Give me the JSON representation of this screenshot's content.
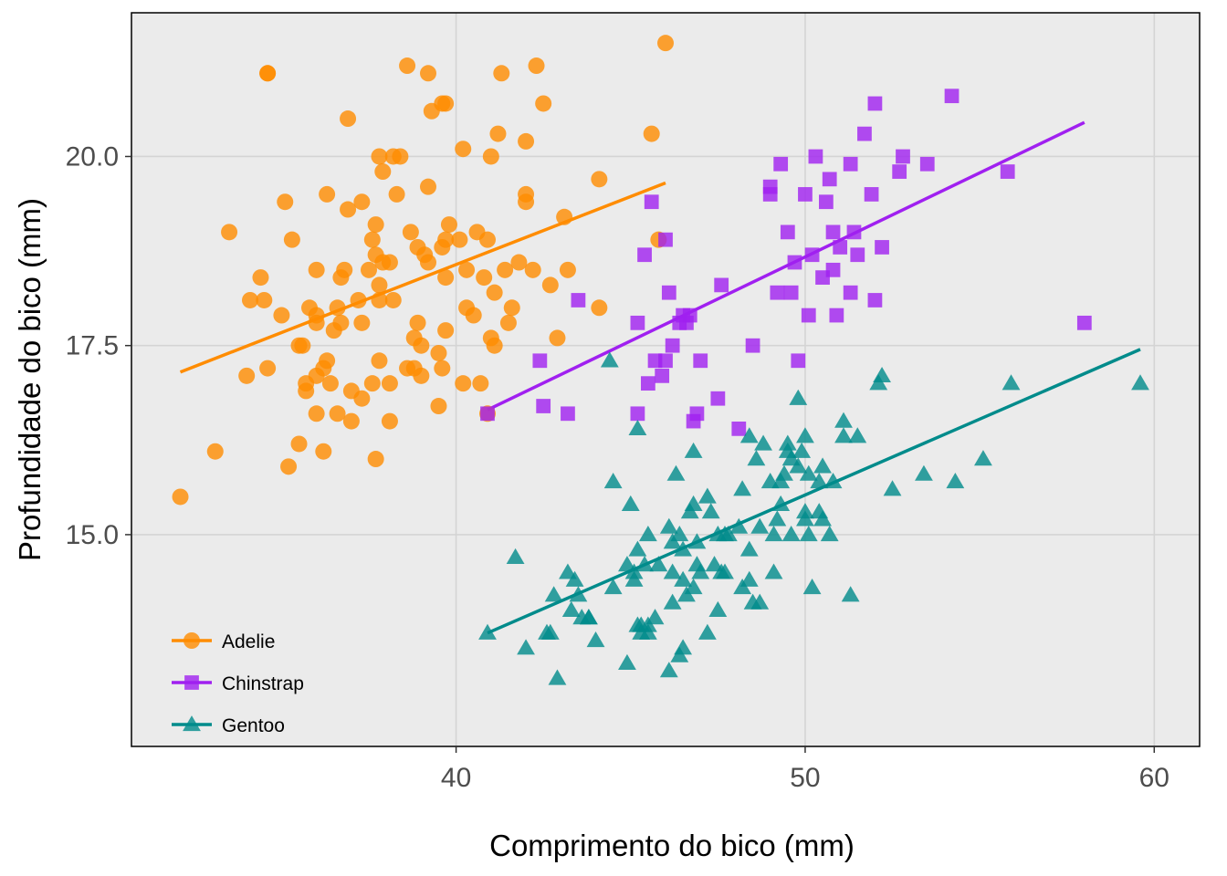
{
  "chart_data": {
    "type": "scatter",
    "xlabel": "Comprimento do bico (mm)",
    "ylabel": "Profundidade do bico (mm)",
    "xlim": [
      30.7,
      61.3
    ],
    "ylim": [
      12.2,
      21.9
    ],
    "xticks": [
      40,
      50,
      60
    ],
    "xtick_labels": [
      "40",
      "50",
      "60"
    ],
    "yticks": [
      15.0,
      17.5,
      20.0
    ],
    "ytick_labels": [
      "15.0",
      "17.5",
      "20.0"
    ],
    "grid": true,
    "legend_position": "bottom-left",
    "series": [
      {
        "name": "Adelie",
        "color": "#ff8c00",
        "marker": "circle",
        "trend": [
          [
            32.1,
            17.15
          ],
          [
            46.0,
            19.65
          ]
        ],
        "points": [
          [
            32.1,
            15.5
          ],
          [
            33.1,
            16.1
          ],
          [
            33.5,
            19.0
          ],
          [
            34.0,
            17.1
          ],
          [
            34.1,
            18.1
          ],
          [
            34.4,
            18.4
          ],
          [
            34.5,
            18.1
          ],
          [
            34.6,
            17.2
          ],
          [
            34.6,
            21.1
          ],
          [
            35.0,
            17.9
          ],
          [
            35.1,
            19.4
          ],
          [
            35.2,
            15.9
          ],
          [
            35.3,
            18.9
          ],
          [
            35.5,
            16.2
          ],
          [
            35.5,
            17.5
          ],
          [
            35.6,
            17.5
          ],
          [
            35.7,
            17.0
          ],
          [
            35.7,
            16.9
          ],
          [
            35.8,
            18.0
          ],
          [
            36.0,
            16.6
          ],
          [
            36.0,
            17.1
          ],
          [
            36.0,
            17.8
          ],
          [
            36.0,
            17.9
          ],
          [
            36.0,
            18.5
          ],
          [
            36.2,
            17.2
          ],
          [
            36.2,
            16.1
          ],
          [
            36.3,
            17.3
          ],
          [
            36.3,
            19.5
          ],
          [
            36.4,
            17.0
          ],
          [
            36.5,
            17.7
          ],
          [
            36.6,
            16.6
          ],
          [
            36.6,
            18.0
          ],
          [
            36.7,
            17.8
          ],
          [
            36.7,
            18.4
          ],
          [
            36.8,
            18.5
          ],
          [
            36.9,
            19.3
          ],
          [
            37.0,
            16.9
          ],
          [
            37.0,
            16.5
          ],
          [
            37.2,
            18.1
          ],
          [
            37.3,
            16.8
          ],
          [
            37.3,
            17.8
          ],
          [
            37.3,
            19.4
          ],
          [
            37.5,
            18.5
          ],
          [
            37.6,
            17.0
          ],
          [
            37.6,
            18.9
          ],
          [
            37.7,
            18.7
          ],
          [
            37.7,
            16.0
          ],
          [
            37.7,
            19.1
          ],
          [
            37.8,
            18.3
          ],
          [
            37.8,
            17.3
          ],
          [
            37.8,
            18.1
          ],
          [
            37.8,
            20.0
          ],
          [
            37.9,
            18.6
          ],
          [
            38.1,
            18.6
          ],
          [
            38.1,
            17.0
          ],
          [
            38.1,
            16.5
          ],
          [
            38.2,
            18.1
          ],
          [
            38.2,
            20.0
          ],
          [
            38.6,
            21.2
          ],
          [
            38.6,
            17.2
          ],
          [
            38.7,
            19.0
          ],
          [
            38.8,
            17.2
          ],
          [
            38.8,
            17.6
          ],
          [
            38.9,
            18.8
          ],
          [
            38.9,
            17.8
          ],
          [
            39.0,
            17.1
          ],
          [
            39.0,
            17.5
          ],
          [
            39.1,
            18.7
          ],
          [
            39.2,
            19.6
          ],
          [
            39.2,
            18.6
          ],
          [
            39.3,
            20.6
          ],
          [
            39.5,
            17.4
          ],
          [
            39.5,
            16.7
          ],
          [
            39.6,
            18.8
          ],
          [
            39.6,
            17.2
          ],
          [
            39.7,
            18.4
          ],
          [
            39.7,
            17.7
          ],
          [
            39.7,
            18.9
          ],
          [
            39.8,
            19.1
          ],
          [
            40.1,
            18.9
          ],
          [
            40.2,
            17.0
          ],
          [
            40.3,
            18.0
          ],
          [
            40.3,
            18.5
          ],
          [
            40.5,
            17.9
          ],
          [
            40.6,
            19.0
          ],
          [
            40.7,
            17.0
          ],
          [
            40.8,
            18.4
          ],
          [
            40.9,
            16.6
          ],
          [
            40.9,
            18.9
          ],
          [
            41.0,
            17.6
          ],
          [
            41.1,
            17.5
          ],
          [
            41.1,
            18.2
          ],
          [
            41.3,
            21.1
          ],
          [
            41.4,
            18.5
          ],
          [
            41.5,
            17.8
          ],
          [
            41.6,
            18.0
          ],
          [
            42.0,
            19.5
          ],
          [
            42.2,
            18.5
          ],
          [
            42.3,
            21.2
          ],
          [
            42.5,
            20.7
          ],
          [
            42.7,
            18.3
          ],
          [
            42.9,
            17.6
          ],
          [
            43.1,
            19.2
          ],
          [
            43.2,
            18.5
          ],
          [
            44.1,
            18.0
          ],
          [
            44.1,
            19.7
          ],
          [
            45.6,
            20.3
          ],
          [
            45.8,
            18.9
          ],
          [
            46.0,
            21.5
          ],
          [
            34.6,
            21.1
          ],
          [
            38.3,
            19.5
          ],
          [
            36.9,
            20.5
          ],
          [
            38.4,
            20.0
          ],
          [
            39.2,
            21.1
          ],
          [
            39.7,
            20.7
          ],
          [
            40.2,
            20.1
          ],
          [
            41.0,
            20.0
          ],
          [
            41.2,
            20.3
          ],
          [
            42.0,
            20.2
          ],
          [
            42.0,
            19.4
          ],
          [
            41.8,
            18.6
          ],
          [
            37.9,
            19.8
          ],
          [
            39.6,
            20.7
          ]
        ]
      },
      {
        "name": "Chinstrap",
        "color": "#a020f0",
        "marker": "square",
        "trend": [
          [
            40.9,
            16.65
          ],
          [
            58.0,
            20.45
          ]
        ],
        "points": [
          [
            40.9,
            16.6
          ],
          [
            42.4,
            17.3
          ],
          [
            42.5,
            16.7
          ],
          [
            43.2,
            16.6
          ],
          [
            43.5,
            18.1
          ],
          [
            45.2,
            17.8
          ],
          [
            45.2,
            16.6
          ],
          [
            45.4,
            18.7
          ],
          [
            45.5,
            17.0
          ],
          [
            45.6,
            19.4
          ],
          [
            45.7,
            17.3
          ],
          [
            45.9,
            17.1
          ],
          [
            46.0,
            18.9
          ],
          [
            46.1,
            18.2
          ],
          [
            46.2,
            17.5
          ],
          [
            46.4,
            17.8
          ],
          [
            46.5,
            17.9
          ],
          [
            46.6,
            17.8
          ],
          [
            46.7,
            17.9
          ],
          [
            46.8,
            16.5
          ],
          [
            46.9,
            16.6
          ],
          [
            47.0,
            17.3
          ],
          [
            47.5,
            16.8
          ],
          [
            47.6,
            18.3
          ],
          [
            48.1,
            16.4
          ],
          [
            48.5,
            17.5
          ],
          [
            49.0,
            19.6
          ],
          [
            49.2,
            18.2
          ],
          [
            49.3,
            19.9
          ],
          [
            49.5,
            19.0
          ],
          [
            49.6,
            18.2
          ],
          [
            49.7,
            18.6
          ],
          [
            49.8,
            17.3
          ],
          [
            50.0,
            19.5
          ],
          [
            50.1,
            17.9
          ],
          [
            50.2,
            18.7
          ],
          [
            50.3,
            20.0
          ],
          [
            50.5,
            18.4
          ],
          [
            50.6,
            19.4
          ],
          [
            50.7,
            19.7
          ],
          [
            50.8,
            18.5
          ],
          [
            50.9,
            17.9
          ],
          [
            51.0,
            18.8
          ],
          [
            51.3,
            18.2
          ],
          [
            51.4,
            19.0
          ],
          [
            51.5,
            18.7
          ],
          [
            51.7,
            20.3
          ],
          [
            51.9,
            19.5
          ],
          [
            52.0,
            18.1
          ],
          [
            52.2,
            18.8
          ],
          [
            52.7,
            19.8
          ],
          [
            52.8,
            20.0
          ],
          [
            53.5,
            19.9
          ],
          [
            54.2,
            20.8
          ],
          [
            55.8,
            19.8
          ],
          [
            58.0,
            17.8
          ],
          [
            49.0,
            19.5
          ],
          [
            50.8,
            19.0
          ],
          [
            51.3,
            19.9
          ],
          [
            52.0,
            20.7
          ],
          [
            46.0,
            17.3
          ]
        ]
      },
      {
        "name": "Gentoo",
        "color": "#008b8b",
        "marker": "triangle",
        "trend": [
          [
            40.9,
            13.7
          ],
          [
            59.6,
            17.45
          ]
        ],
        "points": [
          [
            40.9,
            13.7
          ],
          [
            41.7,
            14.7
          ],
          [
            42.0,
            13.5
          ],
          [
            42.6,
            13.7
          ],
          [
            42.7,
            13.7
          ],
          [
            42.8,
            14.2
          ],
          [
            42.9,
            13.1
          ],
          [
            43.2,
            14.5
          ],
          [
            43.3,
            14.0
          ],
          [
            43.4,
            14.4
          ],
          [
            43.5,
            14.2
          ],
          [
            43.6,
            13.9
          ],
          [
            43.8,
            13.9
          ],
          [
            44.0,
            13.6
          ],
          [
            44.4,
            17.3
          ],
          [
            44.5,
            14.3
          ],
          [
            44.5,
            15.7
          ],
          [
            44.9,
            13.3
          ],
          [
            45.0,
            15.4
          ],
          [
            45.1,
            14.5
          ],
          [
            45.2,
            13.8
          ],
          [
            45.2,
            14.8
          ],
          [
            45.2,
            16.4
          ],
          [
            45.3,
            13.8
          ],
          [
            45.3,
            13.7
          ],
          [
            45.4,
            14.6
          ],
          [
            45.5,
            13.7
          ],
          [
            45.5,
            15.0
          ],
          [
            45.7,
            13.9
          ],
          [
            45.8,
            14.6
          ],
          [
            46.1,
            13.2
          ],
          [
            46.1,
            15.1
          ],
          [
            46.2,
            14.1
          ],
          [
            46.2,
            14.5
          ],
          [
            46.3,
            15.8
          ],
          [
            46.4,
            15.0
          ],
          [
            46.5,
            13.5
          ],
          [
            46.5,
            14.4
          ],
          [
            46.5,
            14.8
          ],
          [
            46.6,
            14.2
          ],
          [
            46.7,
            15.3
          ],
          [
            46.8,
            14.3
          ],
          [
            46.8,
            15.4
          ],
          [
            46.8,
            16.1
          ],
          [
            46.9,
            14.6
          ],
          [
            47.2,
            13.7
          ],
          [
            47.2,
            15.5
          ],
          [
            47.3,
            15.3
          ],
          [
            47.4,
            14.6
          ],
          [
            47.5,
            14.0
          ],
          [
            47.5,
            15.0
          ],
          [
            47.6,
            14.5
          ],
          [
            47.7,
            15.0
          ],
          [
            47.8,
            15.0
          ],
          [
            48.1,
            15.1
          ],
          [
            48.2,
            14.3
          ],
          [
            48.2,
            15.6
          ],
          [
            48.4,
            14.4
          ],
          [
            48.4,
            16.3
          ],
          [
            48.5,
            14.1
          ],
          [
            48.6,
            16.0
          ],
          [
            48.7,
            14.1
          ],
          [
            48.7,
            15.1
          ],
          [
            48.8,
            16.2
          ],
          [
            49.0,
            15.7
          ],
          [
            49.1,
            14.5
          ],
          [
            49.1,
            15.0
          ],
          [
            49.2,
            15.2
          ],
          [
            49.3,
            15.7
          ],
          [
            49.4,
            15.8
          ],
          [
            49.5,
            16.1
          ],
          [
            49.5,
            16.2
          ],
          [
            49.6,
            15.0
          ],
          [
            49.6,
            16.0
          ],
          [
            49.8,
            15.9
          ],
          [
            49.8,
            16.8
          ],
          [
            49.9,
            16.1
          ],
          [
            50.0,
            15.2
          ],
          [
            50.0,
            15.3
          ],
          [
            50.0,
            16.3
          ],
          [
            50.1,
            15.0
          ],
          [
            50.2,
            14.3
          ],
          [
            50.4,
            15.3
          ],
          [
            50.4,
            15.7
          ],
          [
            50.5,
            15.2
          ],
          [
            50.5,
            15.9
          ],
          [
            50.7,
            15.0
          ],
          [
            50.8,
            15.7
          ],
          [
            51.1,
            16.3
          ],
          [
            51.1,
            16.5
          ],
          [
            51.3,
            14.2
          ],
          [
            51.5,
            16.3
          ],
          [
            52.1,
            17.0
          ],
          [
            52.2,
            17.1
          ],
          [
            52.5,
            15.6
          ],
          [
            53.4,
            15.8
          ],
          [
            54.3,
            15.7
          ],
          [
            55.1,
            16.0
          ],
          [
            55.9,
            17.0
          ],
          [
            59.6,
            17.0
          ],
          [
            45.1,
            14.4
          ],
          [
            46.2,
            14.9
          ],
          [
            47.0,
            14.5
          ],
          [
            44.9,
            14.6
          ],
          [
            43.8,
            13.9
          ],
          [
            46.4,
            13.4
          ],
          [
            45.5,
            13.8
          ],
          [
            47.7,
            14.5
          ],
          [
            48.4,
            14.8
          ],
          [
            49.3,
            15.4
          ],
          [
            50.1,
            15.8
          ],
          [
            46.9,
            14.9
          ]
        ]
      }
    ]
  }
}
